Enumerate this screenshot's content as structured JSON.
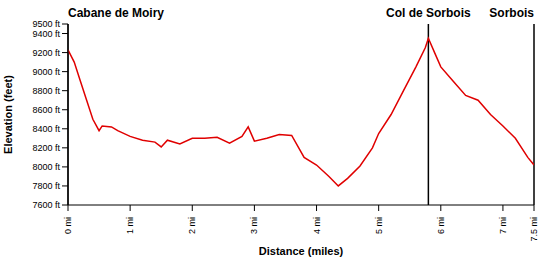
{
  "chart_data": {
    "type": "line",
    "x_label": "Distance (miles)",
    "y_label": "Elevation (feet)",
    "color": "#e00000",
    "grid": false,
    "x": [
      0,
      0.1,
      0.2,
      0.3,
      0.4,
      0.5,
      0.55,
      0.7,
      0.8,
      1.0,
      1.2,
      1.4,
      1.5,
      1.6,
      1.8,
      2.0,
      2.2,
      2.4,
      2.6,
      2.8,
      2.9,
      3.0,
      3.2,
      3.4,
      3.6,
      3.8,
      4.0,
      4.2,
      4.35,
      4.5,
      4.7,
      4.9,
      5.0,
      5.2,
      5.4,
      5.6,
      5.75,
      5.8,
      5.9,
      6.0,
      6.2,
      6.4,
      6.6,
      6.8,
      7.0,
      7.2,
      7.4,
      7.5
    ],
    "values": [
      9230,
      9100,
      8900,
      8700,
      8500,
      8380,
      8430,
      8420,
      8380,
      8320,
      8280,
      8260,
      8210,
      8280,
      8240,
      8300,
      8300,
      8310,
      8250,
      8320,
      8420,
      8270,
      8300,
      8340,
      8330,
      8100,
      8020,
      7900,
      7800,
      7880,
      8010,
      8200,
      8350,
      8550,
      8800,
      9050,
      9250,
      9350,
      9200,
      9050,
      8900,
      8750,
      8700,
      8550,
      8430,
      8300,
      8100,
      8020
    ],
    "xlim": [
      0,
      7.5
    ],
    "xticks": [
      {
        "value": 0,
        "label": "0 mi"
      },
      {
        "value": 1,
        "label": "1 mi"
      },
      {
        "value": 2,
        "label": "2 mi"
      },
      {
        "value": 3,
        "label": "3 mi"
      },
      {
        "value": 4,
        "label": "4 mi"
      },
      {
        "value": 5,
        "label": "5 mi"
      },
      {
        "value": 6,
        "label": "6 mi"
      },
      {
        "value": 7,
        "label": "7 mi"
      },
      {
        "value": 7.5,
        "label": "7.5 mi"
      }
    ],
    "ylim": [
      7600,
      9500
    ],
    "yticks": [
      {
        "value": 7600,
        "label": "7600 ft"
      },
      {
        "value": 7800,
        "label": "7800 ft"
      },
      {
        "value": 8000,
        "label": "8000 ft"
      },
      {
        "value": 8200,
        "label": "8200 ft"
      },
      {
        "value": 8400,
        "label": "8400 ft"
      },
      {
        "value": 8600,
        "label": "8600 ft"
      },
      {
        "value": 8800,
        "label": "8800 ft"
      },
      {
        "value": 9000,
        "label": "9000 ft"
      },
      {
        "value": 9200,
        "label": "9200 ft"
      },
      {
        "value": 9400,
        "label": "9400 ft"
      },
      {
        "value": 9500,
        "label": "9500 ft"
      }
    ],
    "annotations": [
      {
        "text": "Cabane de Moiry",
        "x": 0
      },
      {
        "text": "Col de Sorbois",
        "x": 5.8
      },
      {
        "text": "Sorbois",
        "x": 7.5
      }
    ]
  }
}
